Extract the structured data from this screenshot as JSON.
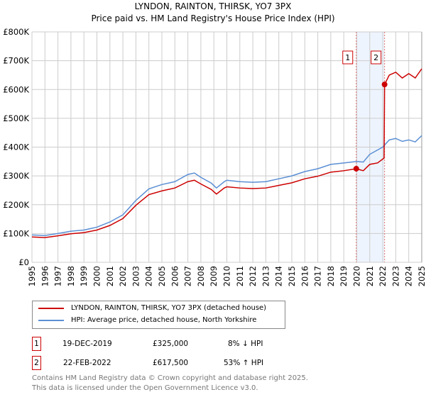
{
  "chart_data": {
    "type": "line",
    "title": "LYNDON, RAINTON, THIRSK, YO7 3PX",
    "subtitle": "Price paid vs. HM Land Registry's House Price Index (HPI)",
    "xlim": [
      1995,
      2025
    ],
    "ylim": [
      0,
      800000
    ],
    "yticks": [
      {
        "v": 0,
        "l": "£0"
      },
      {
        "v": 100000,
        "l": "£100K"
      },
      {
        "v": 200000,
        "l": "£200K"
      },
      {
        "v": 300000,
        "l": "£300K"
      },
      {
        "v": 400000,
        "l": "£400K"
      },
      {
        "v": 500000,
        "l": "£500K"
      },
      {
        "v": 600000,
        "l": "£600K"
      },
      {
        "v": 700000,
        "l": "£700K"
      },
      {
        "v": 800000,
        "l": "£800K"
      }
    ],
    "xticks": [
      "1995",
      "1996",
      "1997",
      "1998",
      "1999",
      "2000",
      "2001",
      "2002",
      "2003",
      "2004",
      "2005",
      "2006",
      "2007",
      "2008",
      "2009",
      "2010",
      "2011",
      "2012",
      "2013",
      "2014",
      "2015",
      "2016",
      "2017",
      "2018",
      "2019",
      "2020",
      "2021",
      "2022",
      "2023",
      "2024",
      "2025"
    ],
    "grid": true,
    "series": [
      {
        "name": "LYNDON, RAINTON, THIRSK, YO7 3PX (detached house)",
        "color": "#cc0000",
        "points": [
          [
            1995,
            88000
          ],
          [
            1996,
            86000
          ],
          [
            1997,
            92000
          ],
          [
            1998,
            99000
          ],
          [
            1999,
            103000
          ],
          [
            2000,
            112000
          ],
          [
            2001,
            128000
          ],
          [
            2002,
            152000
          ],
          [
            2003,
            198000
          ],
          [
            2004,
            235000
          ],
          [
            2005,
            248000
          ],
          [
            2006,
            258000
          ],
          [
            2007,
            280000
          ],
          [
            2007.5,
            285000
          ],
          [
            2008,
            272000
          ],
          [
            2008.8,
            253000
          ],
          [
            2009.2,
            237000
          ],
          [
            2009.8,
            258000
          ],
          [
            2010,
            262000
          ],
          [
            2011,
            258000
          ],
          [
            2012,
            256000
          ],
          [
            2013,
            258000
          ],
          [
            2014,
            267000
          ],
          [
            2015,
            276000
          ],
          [
            2016,
            290000
          ],
          [
            2017,
            299000
          ],
          [
            2018,
            313000
          ],
          [
            2019,
            318000
          ],
          [
            2019.96,
            325000
          ],
          [
            2020.5,
            318000
          ],
          [
            2021,
            340000
          ],
          [
            2021.6,
            345000
          ],
          [
            2022.1,
            362000
          ],
          [
            2022.14,
            617500
          ],
          [
            2022.5,
            650000
          ],
          [
            2023,
            660000
          ],
          [
            2023.5,
            640000
          ],
          [
            2024,
            655000
          ],
          [
            2024.5,
            640000
          ],
          [
            2025,
            672000
          ]
        ]
      },
      {
        "name": "HPI: Average price, detached house, North Yorkshire",
        "color": "#5b8fd4",
        "points": [
          [
            1995,
            95000
          ],
          [
            1996,
            93000
          ],
          [
            1997,
            100000
          ],
          [
            1998,
            108000
          ],
          [
            1999,
            112000
          ],
          [
            2000,
            122000
          ],
          [
            2001,
            140000
          ],
          [
            2002,
            165000
          ],
          [
            2003,
            215000
          ],
          [
            2004,
            255000
          ],
          [
            2005,
            270000
          ],
          [
            2006,
            280000
          ],
          [
            2007,
            305000
          ],
          [
            2007.5,
            310000
          ],
          [
            2008,
            295000
          ],
          [
            2008.8,
            275000
          ],
          [
            2009.2,
            258000
          ],
          [
            2009.8,
            280000
          ],
          [
            2010,
            285000
          ],
          [
            2011,
            280000
          ],
          [
            2012,
            278000
          ],
          [
            2013,
            280000
          ],
          [
            2014,
            290000
          ],
          [
            2015,
            300000
          ],
          [
            2016,
            315000
          ],
          [
            2017,
            325000
          ],
          [
            2018,
            340000
          ],
          [
            2019,
            345000
          ],
          [
            2020,
            350000
          ],
          [
            2020.5,
            348000
          ],
          [
            2021,
            375000
          ],
          [
            2022,
            400000
          ],
          [
            2022.5,
            425000
          ],
          [
            2023,
            430000
          ],
          [
            2023.5,
            420000
          ],
          [
            2024,
            425000
          ],
          [
            2024.5,
            418000
          ],
          [
            2025,
            440000
          ]
        ]
      }
    ],
    "sales": [
      {
        "id": "1",
        "x": 2019.96,
        "y": 325000
      },
      {
        "id": "2",
        "x": 2022.14,
        "y": 617500
      }
    ],
    "legend": "bottom"
  },
  "legend": {
    "red": "LYNDON, RAINTON, THIRSK, YO7 3PX (detached house)",
    "blue": "HPI: Average price, detached house, North Yorkshire"
  },
  "transactions": [
    {
      "id": "1",
      "date": "19-DEC-2019",
      "price": "£325,000",
      "hpi": "8% ↓ HPI"
    },
    {
      "id": "2",
      "date": "22-FEB-2022",
      "price": "£617,500",
      "hpi": "53% ↑ HPI"
    }
  ],
  "footer": {
    "line1": "Contains HM Land Registry data © Crown copyright and database right 2025.",
    "line2": "This data is licensed under the Open Government Licence v3.0."
  }
}
